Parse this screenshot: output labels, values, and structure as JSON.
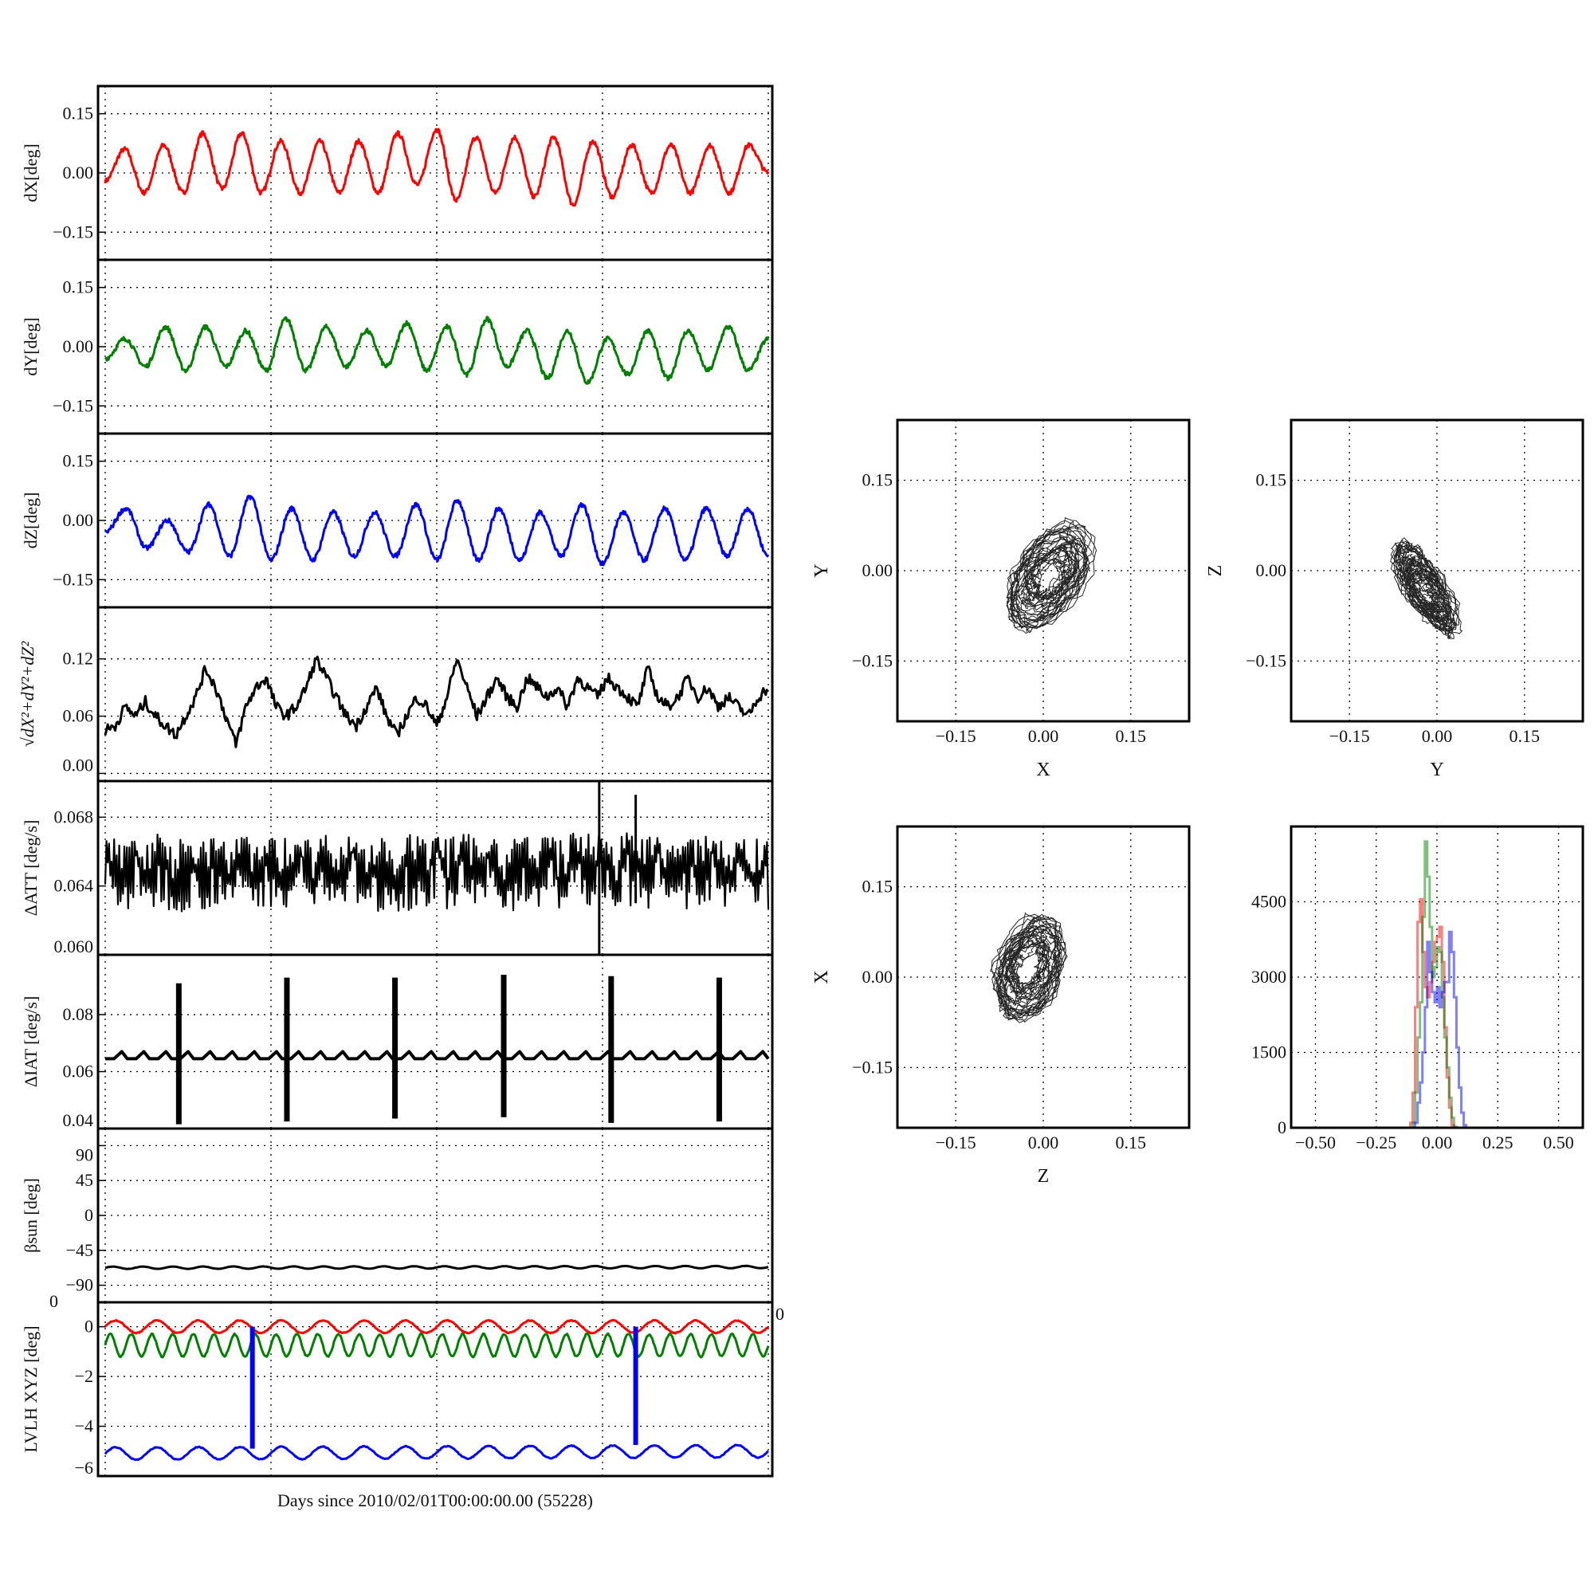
{
  "chart_data": [
    {
      "type": "line",
      "id": "dX",
      "ylabel": "dX[deg]",
      "ylim": [
        -0.22,
        0.22
      ],
      "yticks": [
        "0.15",
        "0.00",
        "−0.15"
      ],
      "ytick_values": [
        0.15,
        0,
        -0.15
      ],
      "grid": true,
      "color": "#ff0000",
      "style": "extrema",
      "start": -0.02,
      "extrema": [
        0.06,
        -0.05,
        0.07,
        -0.05,
        0.1,
        -0.04,
        0.1,
        -0.05,
        0.08,
        -0.05,
        0.08,
        -0.05,
        0.08,
        -0.05,
        0.1,
        -0.03,
        0.11,
        -0.07,
        0.09,
        -0.05,
        0.09,
        -0.06,
        0.09,
        -0.08,
        0.08,
        -0.06,
        0.07,
        -0.05,
        0.07,
        -0.05,
        0.07,
        -0.05,
        0.07,
        0.0
      ]
    },
    {
      "type": "line",
      "id": "dY",
      "ylabel": "dY[deg]",
      "ylim": [
        -0.22,
        0.22
      ],
      "yticks": [
        "0.15",
        "0.00",
        "−0.15"
      ],
      "ytick_values": [
        0.15,
        0,
        -0.15
      ],
      "grid": true,
      "color": "#008000",
      "style": "extrema",
      "start": -0.03,
      "extrema": [
        0.02,
        -0.05,
        0.05,
        -0.06,
        0.05,
        -0.05,
        0.04,
        -0.06,
        0.07,
        -0.06,
        0.05,
        -0.05,
        0.04,
        -0.05,
        0.06,
        -0.06,
        0.05,
        -0.07,
        0.07,
        -0.05,
        0.04,
        -0.08,
        0.04,
        -0.09,
        0.02,
        -0.07,
        0.04,
        -0.08,
        0.04,
        -0.06,
        0.05,
        -0.06,
        0.02
      ]
    },
    {
      "type": "line",
      "id": "dZ",
      "ylabel": "dZ[deg]",
      "ylim": [
        -0.22,
        0.22
      ],
      "yticks": [
        "0.15",
        "0.00",
        "−0.15"
      ],
      "ytick_values": [
        0.15,
        0,
        -0.15
      ],
      "grid": true,
      "color": "#0000ff",
      "style": "extrema",
      "start": -0.03,
      "extrema": [
        0.03,
        -0.07,
        0.0,
        -0.08,
        0.04,
        -0.09,
        0.06,
        -0.1,
        0.03,
        -0.1,
        0.02,
        -0.09,
        0.02,
        -0.09,
        0.04,
        -0.1,
        0.05,
        -0.1,
        0.03,
        -0.1,
        0.02,
        -0.09,
        0.04,
        -0.11,
        0.02,
        -0.1,
        0.03,
        -0.1,
        0.03,
        -0.09,
        0.03,
        -0.09
      ]
    },
    {
      "type": "line",
      "id": "norm",
      "ylabel": "√dX²+dY²+dZ²",
      "ylim": [
        -0.008,
        0.174
      ],
      "yticks": [
        "0.12",
        "0.06",
        "0.00"
      ],
      "ytick_values": [
        0.12,
        0.06,
        0
      ],
      "grid": true,
      "color": "#000000",
      "style": "values",
      "values": [
        0.045,
        0.05,
        0.07,
        0.06,
        0.075,
        0.06,
        0.05,
        0.04,
        0.06,
        0.08,
        0.11,
        0.09,
        0.06,
        0.03,
        0.07,
        0.09,
        0.1,
        0.07,
        0.06,
        0.07,
        0.09,
        0.12,
        0.1,
        0.08,
        0.06,
        0.05,
        0.07,
        0.09,
        0.06,
        0.04,
        0.06,
        0.08,
        0.07,
        0.05,
        0.08,
        0.12,
        0.09,
        0.06,
        0.08,
        0.1,
        0.08,
        0.07,
        0.1,
        0.09,
        0.08,
        0.09,
        0.07,
        0.1,
        0.09,
        0.08,
        0.1,
        0.09,
        0.08,
        0.07,
        0.11,
        0.08,
        0.07,
        0.08,
        0.1,
        0.08,
        0.09,
        0.07,
        0.08,
        0.07,
        0.06,
        0.08,
        0.09
      ]
    },
    {
      "type": "line",
      "id": "datt",
      "ylabel": "ΔATT [deg/s]",
      "ylim": [
        0.06,
        0.0701
      ],
      "yticks": [
        "0.068",
        "0.064",
        "0.060"
      ],
      "ytick_values": [
        0.068,
        0.064,
        0.06
      ],
      "grid": true,
      "color": "#000000",
      "style": "band",
      "upper": [
        0.0668,
        0.067,
        0.067,
        0.0669,
        0.0668,
        0.0669,
        0.0668,
        0.0669,
        0.067,
        0.0669,
        0.0668,
        0.067,
        0.0669,
        0.067,
        0.067,
        0.0669,
        0.067,
        0.0671,
        0.067,
        0.0671,
        0.0669,
        0.0668,
        0.0669,
        0.0668,
        0.0667
      ],
      "lower": [
        0.0628,
        0.0624,
        0.0626,
        0.0625,
        0.0627,
        0.0626,
        0.0628,
        0.0627,
        0.0626,
        0.0627,
        0.0625,
        0.0626,
        0.0627,
        0.0626,
        0.0625,
        0.0626,
        0.0627,
        0.0626,
        0.0628,
        0.0625,
        0.0627,
        0.0626,
        0.0628,
        0.0627,
        0.0626
      ],
      "spikes": [
        {
          "t": 0.745,
          "min": 0.06,
          "max": 0.0701
        },
        {
          "t": 0.8,
          "min": 0.063,
          "max": 0.0693
        }
      ]
    },
    {
      "type": "line",
      "id": "diat",
      "ylabel": "ΔIAT [deg/s]",
      "ylim": [
        0.04,
        0.101
      ],
      "yticks": [
        "0.08",
        "0.06",
        "0.04"
      ],
      "ytick_values": [
        0.08,
        0.06,
        0.04
      ],
      "grid": true,
      "color": "#000000",
      "style": "saw",
      "base_low": 0.0645,
      "base_high": 0.067,
      "cycles": 30,
      "spikes": [
        {
          "t": 0.111,
          "min": 0.0415,
          "max": 0.091
        },
        {
          "t": 0.274,
          "min": 0.0425,
          "max": 0.093
        },
        {
          "t": 0.437,
          "min": 0.0435,
          "max": 0.093
        },
        {
          "t": 0.601,
          "min": 0.044,
          "max": 0.094
        },
        {
          "t": 0.763,
          "min": 0.042,
          "max": 0.0935
        },
        {
          "t": 0.926,
          "min": 0.0425,
          "max": 0.093
        }
      ]
    },
    {
      "type": "line",
      "id": "beta",
      "ylabel": "βsun [deg]",
      "ylim": [
        -112,
        112
      ],
      "yticks": [
        "90",
        "45",
        "0",
        "−45",
        "−90"
      ],
      "ytick_values": [
        90,
        45,
        0,
        -45,
        -90
      ],
      "grid": true,
      "color": "#000000",
      "style": "sine",
      "series": [
        {
          "mean": -67,
          "amp": 1.5,
          "cycles": 22,
          "trend": 2
        }
      ]
    },
    {
      "type": "line",
      "id": "lvlh",
      "ylabel": "LVLH XYZ [deg]",
      "ylim": [
        -6,
        0.98
      ],
      "yticks": [
        "0",
        "−2",
        "−4",
        "−6"
      ],
      "ytick_values": [
        0,
        -2,
        -4,
        -6
      ],
      "grid": true,
      "style": "sine",
      "corner_labels": [
        "0",
        "0"
      ],
      "series": [
        {
          "color": "#ff0000",
          "mean": 0.0,
          "amp": 0.25,
          "cycles": 16,
          "trend": 0
        },
        {
          "color": "#008000",
          "mean": -0.75,
          "amp": 0.45,
          "cycles": 32,
          "trend": 0
        },
        {
          "color": "#0000ff",
          "mean": -5.05,
          "amp": 0.25,
          "cycles": 16,
          "trend": 0.2
        }
      ],
      "spikes": [
        {
          "t": 0.222,
          "min": -4.9,
          "max": 0.0,
          "color": "#0000ff"
        },
        {
          "t": 0.8,
          "min": -4.75,
          "max": 0.0,
          "color": "#0000ff"
        }
      ]
    },
    {
      "type": "scatter",
      "id": "xy",
      "xlabel": "X",
      "ylabel": "Y",
      "xlim": [
        -0.25,
        0.25
      ],
      "ylim": [
        -0.25,
        0.25
      ],
      "ticks": [
        "−0.15",
        "0.00",
        "0.15"
      ],
      "tick_values": [
        -0.15,
        0,
        0.15
      ],
      "grid": true,
      "color": "#000000",
      "loop": {
        "center": [
          0.01,
          -0.01
        ],
        "semi_major": 0.08,
        "semi_minor": 0.045,
        "angle_deg": 55,
        "turns": 30
      }
    },
    {
      "type": "scatter",
      "id": "yz",
      "xlabel": "Y",
      "ylabel": "Z",
      "xlim": [
        -0.25,
        0.25
      ],
      "ylim": [
        -0.25,
        0.25
      ],
      "ticks": [
        "−0.15",
        "0.00",
        "0.15"
      ],
      "tick_values": [
        -0.15,
        0,
        0.15
      ],
      "grid": true,
      "color": "#000000",
      "loop": {
        "center": [
          -0.02,
          -0.03
        ],
        "semi_major": 0.075,
        "semi_minor": 0.025,
        "angle_deg": -58,
        "turns": 30
      }
    },
    {
      "type": "scatter",
      "id": "zx",
      "xlabel": "Z",
      "ylabel": "X",
      "xlim": [
        -0.25,
        0.25
      ],
      "ylim": [
        -0.25,
        0.25
      ],
      "ticks": [
        "−0.15",
        "0.00",
        "0.15"
      ],
      "tick_values": [
        -0.15,
        0,
        0.15
      ],
      "grid": true,
      "color": "#000000",
      "loop": {
        "center": [
          -0.025,
          0.015
        ],
        "semi_major": 0.075,
        "semi_minor": 0.045,
        "angle_deg": 70,
        "turns": 30
      }
    },
    {
      "type": "histogram",
      "id": "hist",
      "xlim": [
        -0.6,
        0.6
      ],
      "ylim": [
        0,
        6000
      ],
      "xticks": [
        "−0.50",
        "−0.25",
        "0.00",
        "0.25",
        "0.50"
      ],
      "xtick_values": [
        -0.5,
        -0.25,
        0,
        0.25,
        0.5
      ],
      "yticks": [
        "0",
        "1500",
        "3000",
        "4500"
      ],
      "ytick_values": [
        0,
        1500,
        3000,
        4500
      ],
      "grid": true,
      "bin_width": 0.01,
      "series": [
        {
          "color": "#ff0000",
          "bin_start": -0.11,
          "counts": [
            100,
            700,
            2400,
            4100,
            4550,
            3500,
            2800,
            2600,
            2900,
            3300,
            3700,
            3800,
            4000,
            3300,
            2000,
            1000,
            400,
            50
          ]
        },
        {
          "color": "#008000",
          "bin_start": -0.1,
          "counts": [
            100,
            700,
            1800,
            2500,
            4200,
            5700,
            5000,
            4000,
            3000,
            3200,
            3600,
            3500,
            2600,
            1800,
            1200,
            600,
            200,
            20
          ]
        },
        {
          "color": "#0000ff",
          "bin_start": -0.09,
          "counts": [
            100,
            500,
            900,
            1500,
            2400,
            3700,
            3100,
            2700,
            2500,
            2800,
            2400,
            2700,
            2900,
            2900,
            3900,
            3500,
            2600,
            1600,
            800,
            300,
            50
          ]
        }
      ]
    }
  ],
  "xlabel": "Days since 2010/02/01T00:00:00.00 (55228)"
}
